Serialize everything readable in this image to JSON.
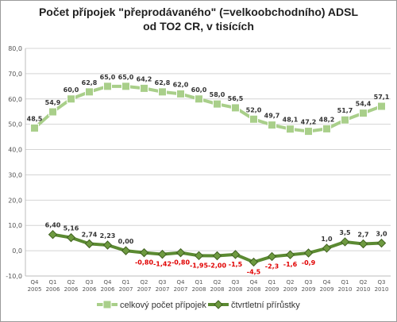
{
  "chart_data": {
    "type": "line",
    "title_line1": "Počet přípojek \"přeprodávaného\" (=velkoobchodního) ADSL",
    "title_line2": "od TO2 CR, v tisících",
    "y_ticks": [
      "-10,0",
      "0,0",
      "10,0",
      "20,0",
      "30,0",
      "40,0",
      "50,0",
      "60,0",
      "70,0",
      "80,0"
    ],
    "ylim": [
      -10,
      80
    ],
    "grid": true,
    "legend_position": "bottom",
    "x_quarters": [
      "Q4",
      "Q1",
      "Q2",
      "Q3",
      "Q4",
      "Q1",
      "Q2",
      "Q3",
      "Q4",
      "Q1",
      "Q2",
      "Q3",
      "Q4",
      "Q1",
      "Q2",
      "Q3",
      "Q4",
      "Q1",
      "Q2",
      "Q3"
    ],
    "x_years": [
      "2005",
      "2006",
      "2006",
      "2006",
      "2006",
      "2007",
      "2007",
      "2007",
      "2007",
      "2008",
      "2008",
      "2008",
      "2008",
      "2009",
      "2009",
      "2009",
      "2009",
      "2010",
      "2010",
      "2010"
    ],
    "series": [
      {
        "name": "celkový počet přípojek",
        "color": "#a9cf8a",
        "marker": "square",
        "values": [
          48.5,
          54.9,
          60.0,
          62.8,
          65.0,
          65.0,
          64.2,
          62.8,
          62.0,
          60.0,
          58.0,
          56.5,
          52.0,
          49.7,
          48.1,
          47.2,
          48.2,
          51.7,
          54.4,
          57.1
        ],
        "labels": [
          "48,5",
          "54,9",
          "60,0",
          "62,8",
          "65,0",
          "65,0",
          "64,2",
          "62,8",
          "62,0",
          "60,0",
          "58,0",
          "56,5",
          "52,0",
          "49,7",
          "48,1",
          "47,2",
          "48,2",
          "51,7",
          "54,4",
          "57,1"
        ]
      },
      {
        "name": "čtvrtletní přírůstky",
        "color": "#5b8a32",
        "marker": "diamond",
        "values": [
          6.4,
          5.16,
          2.74,
          2.23,
          0.0,
          -0.8,
          -1.42,
          -0.8,
          -1.95,
          -2.0,
          -1.5,
          -4.5,
          -2.3,
          -1.6,
          -0.9,
          1.0,
          3.5,
          2.7,
          3.0
        ],
        "labels": [
          "6,40",
          "5,16",
          "2,74",
          "2,23",
          "0,00",
          "-0,80",
          "-1,42",
          "-0,80",
          "-1,95",
          "-2,00",
          "-1,5",
          "-4,5",
          "-2,3",
          "-1,6",
          "-0,9",
          "1,0",
          "3,5",
          "2,7",
          "3,0"
        ]
      }
    ]
  }
}
